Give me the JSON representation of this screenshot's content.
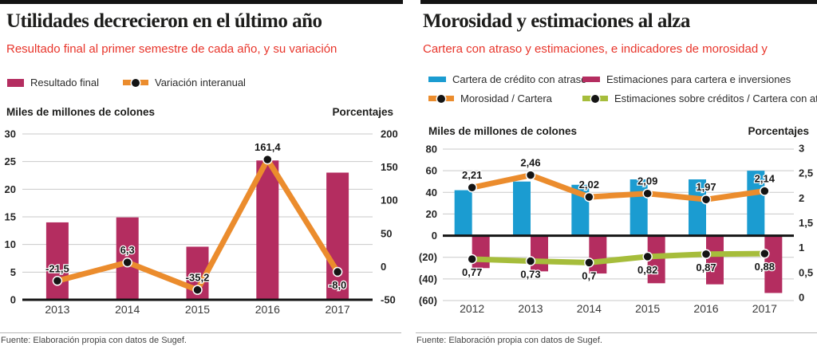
{
  "panels": [
    {
      "title": "Utilidades decrecieron en el último año",
      "subtitle": "Resultado final al primer semestre de cada año, y su variación",
      "source": "Fuente: Elaboración propia con datos de Sugef."
    },
    {
      "title": "Morosidad y estimaciones al alza",
      "subtitle": "Cartera con atraso y estimaciones, e indicadores de morosidad y",
      "source": "Fuente: Elaboración propia con datos de Sugef."
    }
  ],
  "chart_data": [
    {
      "type": "bar+line dual-axis",
      "title": "Utilidades decrecieron en el último año",
      "categories": [
        "2013",
        "2014",
        "2015",
        "2016",
        "2017"
      ],
      "legend": [
        {
          "label": "Resultado final",
          "swatch": "bar",
          "color": "#b42d60"
        },
        {
          "label": "Variación interanual",
          "swatch": "line",
          "color": "#eb8c2d"
        }
      ],
      "left_axis": {
        "title": "Miles de millones de colones",
        "min": 0,
        "max": 30,
        "ticks": [
          {
            "v": 30,
            "label": "30"
          },
          {
            "v": 25,
            "label": "25"
          },
          {
            "v": 20,
            "label": "20"
          },
          {
            "v": 15,
            "label": "15"
          },
          {
            "v": 10,
            "label": "10"
          },
          {
            "v": 5,
            "label": "5"
          },
          {
            "v": 0,
            "label": "0"
          }
        ]
      },
      "right_axis": {
        "title": "Porcentajes",
        "min": -50,
        "max": 200,
        "ticks": [
          {
            "v": 200,
            "label": "200"
          },
          {
            "v": 150,
            "label": "150"
          },
          {
            "v": 100,
            "label": "100"
          },
          {
            "v": 50,
            "label": "50"
          },
          {
            "v": 0,
            "label": "0"
          },
          {
            "v": -50,
            "label": "-50"
          }
        ]
      },
      "bar_series": [
        {
          "name": "Resultado final",
          "axis": "left",
          "color": "#b42d60",
          "align": "center",
          "values": [
            14,
            14.9,
            9.6,
            25.2,
            23
          ]
        }
      ],
      "line_series": [
        {
          "name": "Variación interanual",
          "axis": "right",
          "color": "#eb8c2d",
          "values": [
            -21.5,
            6.3,
            -35.2,
            161.4,
            -8.0
          ],
          "labels": [
            "-21,5",
            "6,3",
            "-35,2",
            "161,4",
            "-8,0"
          ],
          "label_sides": [
            "above",
            "above",
            "above",
            "above",
            "below"
          ]
        }
      ],
      "grid": true,
      "legend_position": "top"
    },
    {
      "type": "bar+line dual-axis",
      "title": "Morosidad y estimaciones al alza",
      "categories": [
        "2012",
        "2013",
        "2014",
        "2015",
        "2016",
        "2017"
      ],
      "legend": [
        {
          "label": "Cartera de crédito con atraso",
          "swatch": "bar",
          "color": "#1b9cd1"
        },
        {
          "label": "Estimaciones para cartera e inversiones",
          "swatch": "bar",
          "color": "#b42d60"
        },
        {
          "label": "Morosidad / Cartera",
          "swatch": "line",
          "color": "#eb8c2d"
        },
        {
          "label": "Estimaciones sobre créditos / Cartera con atraso",
          "swatch": "line",
          "color": "#a6bd3b"
        }
      ],
      "left_axis": {
        "title": "Miles de millones de colones",
        "min": -60,
        "max": 80,
        "ticks": [
          {
            "v": 80,
            "label": "80"
          },
          {
            "v": 60,
            "label": "60"
          },
          {
            "v": 40,
            "label": "40"
          },
          {
            "v": 20,
            "label": "20"
          },
          {
            "v": 0,
            "label": "0"
          },
          {
            "v": -20,
            "label": "(20)"
          },
          {
            "v": -40,
            "label": "(40)"
          },
          {
            "v": -60,
            "label": "(60)"
          }
        ]
      },
      "right_axis": {
        "title": "Porcentajes",
        "min": 0,
        "max": 3,
        "ticks": [
          {
            "v": 3,
            "label": "3"
          },
          {
            "v": 2.5,
            "label": "2,5"
          },
          {
            "v": 2,
            "label": "2"
          },
          {
            "v": 1.5,
            "label": "1,5"
          },
          {
            "v": 1,
            "label": "1"
          },
          {
            "v": 0.5,
            "label": "0,5"
          },
          {
            "v": 0,
            "label": "0"
          }
        ]
      },
      "bar_series": [
        {
          "name": "Cartera de crédito con atraso",
          "axis": "left",
          "color": "#1b9cd1",
          "align": "left",
          "values": [
            42,
            50,
            47,
            52,
            52,
            60
          ]
        },
        {
          "name": "Estimaciones para cartera e inversiones",
          "axis": "left",
          "color": "#b42d60",
          "align": "right",
          "values": [
            -30,
            -33,
            -35,
            -44,
            -45,
            -53
          ]
        }
      ],
      "line_series": [
        {
          "name": "Morosidad / Cartera",
          "axis": "right",
          "color": "#eb8c2d",
          "values": [
            2.21,
            2.46,
            2.02,
            2.09,
            1.97,
            2.14
          ],
          "labels": [
            "2,21",
            "2,46",
            "2,02",
            "2,09",
            "1,97",
            "2,14"
          ],
          "label_sides": [
            "above",
            "above",
            "above",
            "above",
            "above",
            "above"
          ]
        },
        {
          "name": "Estimaciones sobre créditos / Cartera con atraso",
          "axis": "right",
          "color": "#a6bd3b",
          "values": [
            0.77,
            0.73,
            0.7,
            0.82,
            0.87,
            0.88
          ],
          "labels": [
            "0,77",
            "0,73",
            "0,7",
            "0,82",
            "0,87",
            "0,88"
          ],
          "label_sides": [
            "below",
            "below",
            "below",
            "below",
            "below",
            "below"
          ]
        }
      ],
      "grid": true,
      "legend_position": "top"
    }
  ]
}
